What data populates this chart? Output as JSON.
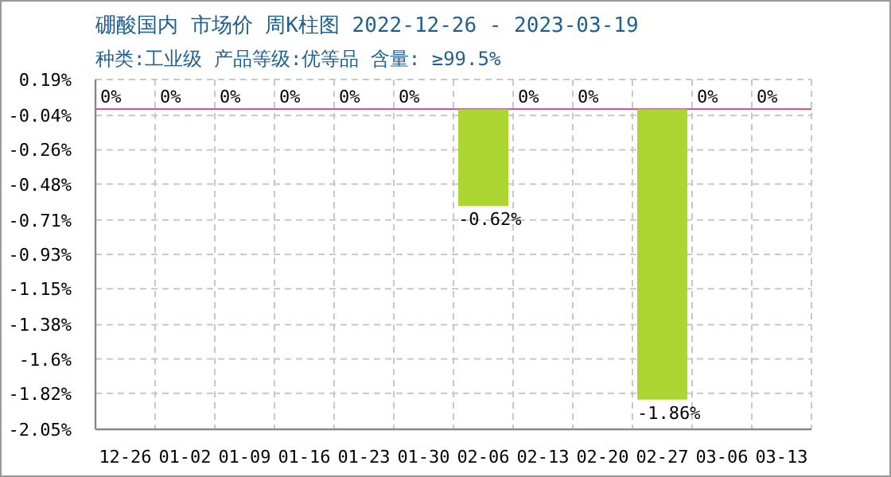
{
  "chart_data": {
    "type": "bar",
    "title": "硼酸国内 市场价 周K柱图 2022-12-26 - 2023-03-19",
    "subtitle": "种类:工业级 产品等级:优等品 含量: ≥99.5%",
    "categories": [
      "12-26",
      "01-02",
      "01-09",
      "01-16",
      "01-23",
      "01-30",
      "02-06",
      "02-13",
      "02-20",
      "02-27",
      "03-06",
      "03-13"
    ],
    "values": [
      0,
      0,
      0,
      0,
      0,
      0,
      -0.62,
      0,
      0,
      -1.86,
      0,
      0
    ],
    "value_labels": [
      "0%",
      "0%",
      "0%",
      "0%",
      "0%",
      "0%",
      "-0.62%",
      "0%",
      "0%",
      "-1.86%",
      "0%",
      "0%"
    ],
    "color": "#add633",
    "ylim": [
      -2.05,
      0.19
    ],
    "yticks": [
      {
        "value": 0.19,
        "label": "0.19%"
      },
      {
        "value": -0.04,
        "label": "-0.04%"
      },
      {
        "value": -0.26,
        "label": "-0.26%"
      },
      {
        "value": -0.48,
        "label": "-0.48%"
      },
      {
        "value": -0.71,
        "label": "-0.71%"
      },
      {
        "value": -0.93,
        "label": "-0.93%"
      },
      {
        "value": -1.15,
        "label": "-1.15%"
      },
      {
        "value": -1.38,
        "label": "-1.38%"
      },
      {
        "value": -1.6,
        "label": "-1.6%"
      },
      {
        "value": -1.82,
        "label": "-1.82%"
      },
      {
        "value": -2.05,
        "label": "-2.05%"
      }
    ],
    "grid": true,
    "ref_lines": [
      {
        "axis": "y",
        "value": 0,
        "color": "#b4508c"
      }
    ]
  }
}
